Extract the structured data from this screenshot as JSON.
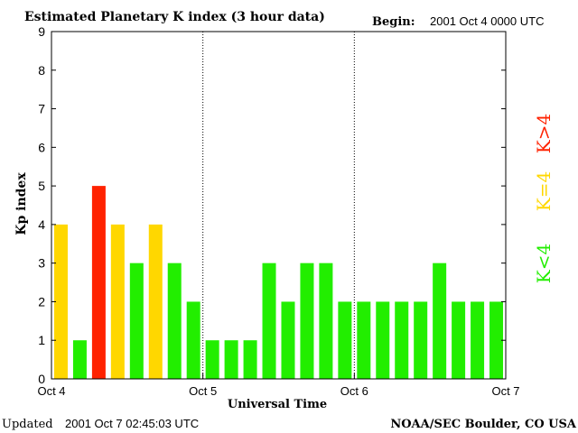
{
  "title": "Estimated Planetary K index (3 hour data)",
  "begin_label": "Begin:",
  "begin_value": "2001 Oct 4 0000 UTC",
  "updated_label": "Updated",
  "updated_value": "2001 Oct  7 02:45:03 UTC",
  "credit": "NOAA/SEC Boulder, CO USA",
  "legend": [
    {
      "label": "K<4",
      "color": "#22ee00"
    },
    {
      "label": "K=4",
      "color": "#ffd700"
    },
    {
      "label": "K>4",
      "color": "#ff2200"
    }
  ],
  "colors": {
    "below4": "#22ee00",
    "equal4": "#ffd700",
    "above4": "#ff2200"
  },
  "chart_data": {
    "type": "bar",
    "title": "Estimated Planetary K index (3 hour data)",
    "xlabel": "Universal Time",
    "ylabel": "Kp index",
    "ylim": [
      0,
      9
    ],
    "yticks": [
      "0",
      "1",
      "2",
      "3",
      "4",
      "5",
      "6",
      "7",
      "8",
      "9"
    ],
    "xticks": [
      "Oct 4",
      "Oct 5",
      "Oct 6",
      "Oct 7"
    ],
    "grid": false,
    "day_separators": "dotted",
    "values": [
      4,
      1,
      5,
      4,
      3,
      4,
      3,
      2,
      1,
      1,
      1,
      3,
      2,
      3,
      3,
      2,
      2,
      2,
      2,
      2,
      3,
      2,
      2,
      2
    ]
  }
}
